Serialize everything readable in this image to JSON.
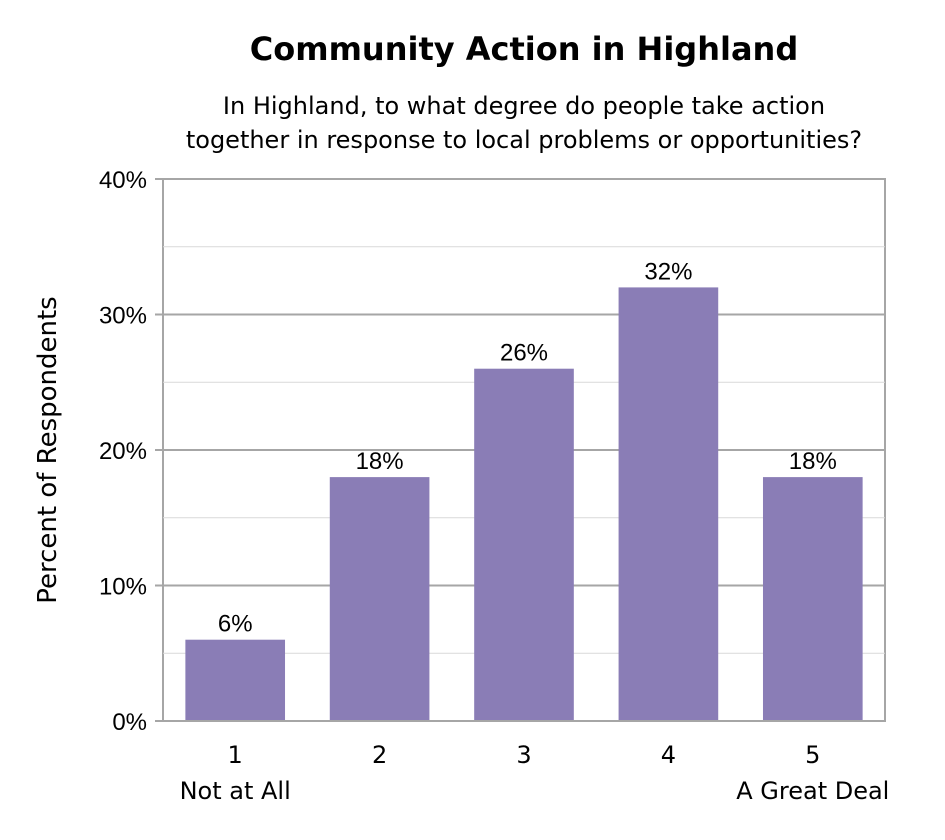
{
  "chart_data": {
    "type": "bar",
    "title": "Community Action in Highland",
    "subtitle_lines": [
      "In Highland, to what degree do people take action",
      "together in response to local problems or opportunities?"
    ],
    "ylabel": "Percent of Respondents",
    "xlabel": "",
    "categories": [
      "1",
      "2",
      "3",
      "4",
      "5"
    ],
    "category_sublabels": [
      "Not at All",
      "",
      "",
      "",
      "A Great Deal"
    ],
    "values": [
      6,
      18,
      26,
      32,
      18
    ],
    "value_labels": [
      "6%",
      "18%",
      "26%",
      "32%",
      "18%"
    ],
    "ylim": [
      0,
      40
    ],
    "yticks": [
      0,
      10,
      20,
      30,
      40
    ],
    "ytick_labels": [
      "0%",
      "10%",
      "20%",
      "30%",
      "40%"
    ],
    "grid": true,
    "bar_color": "#8a7db6"
  }
}
